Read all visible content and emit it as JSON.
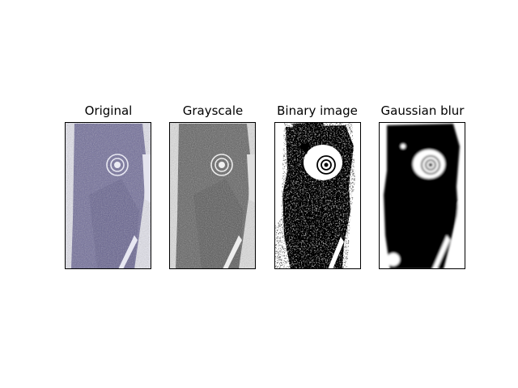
{
  "panels": [
    {
      "title": "Original",
      "style": "color"
    },
    {
      "title": "Grayscale",
      "style": "gray"
    },
    {
      "title": "Binary image",
      "style": "binary"
    },
    {
      "title": "Gaussian blur",
      "style": "blur"
    }
  ],
  "colors": {
    "original_tint": "#6e6a98",
    "original_background": "#dcdcec",
    "grayscale_tone": "#5c5c5c",
    "grayscale_background": "#e0e0e0",
    "foreground": "#000000",
    "background": "#ffffff"
  }
}
